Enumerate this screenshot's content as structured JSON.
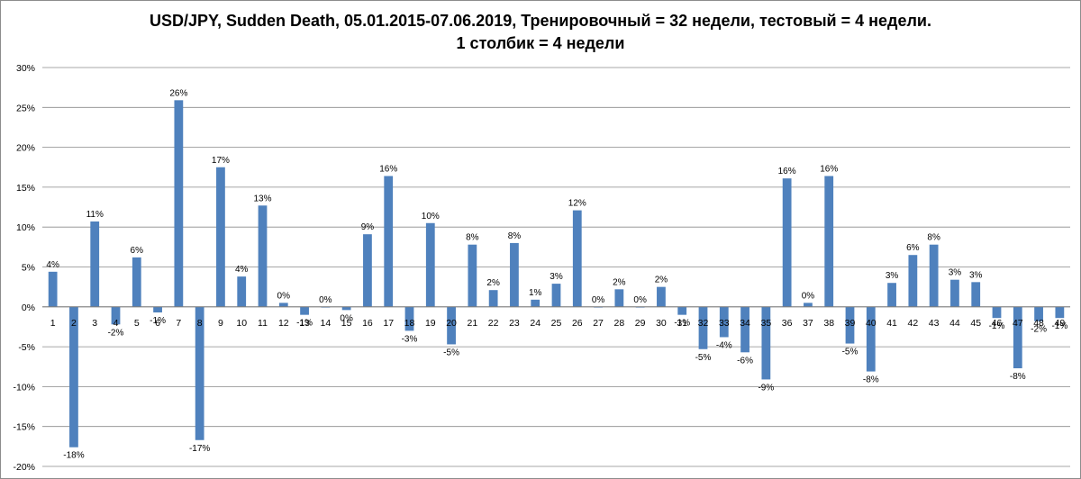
{
  "chart_data": {
    "type": "bar",
    "title_line1": "USD/JPY, Sudden Death, 05.01.2015-07.06.2019,  Тренировочный = 32 недели, тестовый = 4 недели.",
    "title_line2": "1 столбик = 4 недели",
    "xlabel": "",
    "ylabel": "",
    "ylim": [
      -0.2,
      0.3
    ],
    "yticks": [
      0.3,
      0.25,
      0.2,
      0.15,
      0.1,
      0.05,
      0.0,
      -0.05,
      -0.1,
      -0.15,
      -0.2
    ],
    "ytick_labels": [
      "30%",
      "25%",
      "20%",
      "15%",
      "10%",
      "5%",
      "0%",
      "-5%",
      "-10%",
      "-15%",
      "-20%"
    ],
    "grid": true,
    "legend": "none",
    "bar_color": "#4f81bd",
    "categories": [
      "1",
      "2",
      "3",
      "4",
      "5",
      "6",
      "7",
      "8",
      "9",
      "10",
      "11",
      "12",
      "13",
      "14",
      "15",
      "16",
      "17",
      "18",
      "19",
      "20",
      "21",
      "22",
      "23",
      "24",
      "25",
      "26",
      "27",
      "28",
      "29",
      "30",
      "31",
      "32",
      "33",
      "34",
      "35",
      "36",
      "37",
      "38",
      "39",
      "40",
      "41",
      "42",
      "43",
      "44",
      "45",
      "46",
      "47",
      "48",
      "49"
    ],
    "values": [
      0.044,
      -0.176,
      0.107,
      -0.022,
      0.062,
      -0.007,
      0.259,
      -0.167,
      0.175,
      0.038,
      0.127,
      0.005,
      -0.01,
      0.0,
      -0.004,
      0.091,
      0.164,
      -0.03,
      0.105,
      -0.047,
      0.078,
      0.021,
      0.08,
      0.009,
      0.029,
      0.121,
      0.0,
      0.022,
      0.0,
      0.025,
      -0.01,
      -0.053,
      -0.038,
      -0.057,
      -0.091,
      0.161,
      0.005,
      0.164,
      -0.046,
      -0.081,
      0.03,
      0.065,
      0.078,
      0.034,
      0.031,
      -0.014,
      -0.077,
      -0.018,
      -0.014
    ],
    "data_labels": [
      "4%",
      "-18%",
      "11%",
      "-2%",
      "6%",
      "-1%",
      "26%",
      "-17%",
      "17%",
      "4%",
      "13%",
      "0%",
      "-1%",
      "0%",
      "0%",
      "9%",
      "16%",
      "-3%",
      "10%",
      "-5%",
      "8%",
      "2%",
      "8%",
      "1%",
      "3%",
      "12%",
      "0%",
      "2%",
      "0%",
      "2%",
      "-1%",
      "-5%",
      "-4%",
      "-6%",
      "-9%",
      "16%",
      "0%",
      "16%",
      "-5%",
      "-8%",
      "3%",
      "6%",
      "8%",
      "3%",
      "3%",
      "-1%",
      "-8%",
      "-2%",
      "-1%"
    ]
  }
}
